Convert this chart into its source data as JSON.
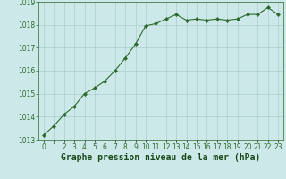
{
  "x": [
    0,
    1,
    2,
    3,
    4,
    5,
    6,
    7,
    8,
    9,
    10,
    11,
    12,
    13,
    14,
    15,
    16,
    17,
    18,
    19,
    20,
    21,
    22,
    23
  ],
  "y": [
    1013.2,
    1013.6,
    1014.1,
    1014.45,
    1015.0,
    1015.25,
    1015.55,
    1016.0,
    1016.55,
    1017.15,
    1017.95,
    1018.05,
    1018.25,
    1018.45,
    1018.2,
    1018.25,
    1018.2,
    1018.25,
    1018.2,
    1018.25,
    1018.45,
    1018.45,
    1018.75,
    1018.45
  ],
  "line_color": "#2d6a2d",
  "marker": "D",
  "marker_size": 2.2,
  "bg_color": "#cce8e8",
  "grid_color": "#aacfcf",
  "xlabel": "Graphe pression niveau de la mer (hPa)",
  "xlabel_color": "#1a4a1a",
  "tick_color": "#2d6a2d",
  "label_color": "#2d6a2d",
  "ylim": [
    1013.0,
    1019.0
  ],
  "xlim": [
    -0.5,
    23.5
  ],
  "yticks": [
    1013,
    1014,
    1015,
    1016,
    1017,
    1018,
    1019
  ],
  "xtick_labels": [
    "0",
    "1",
    "2",
    "3",
    "4",
    "5",
    "6",
    "7",
    "8",
    "9",
    "10",
    "11",
    "12",
    "13",
    "14",
    "15",
    "16",
    "17",
    "18",
    "19",
    "20",
    "21",
    "22",
    "23"
  ],
  "font_size_ticks": 5.5,
  "font_size_xlabel": 7.0,
  "spine_color": "#2d6a2d"
}
